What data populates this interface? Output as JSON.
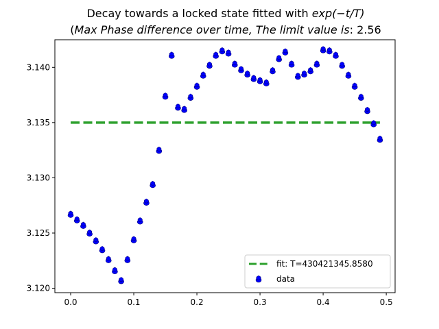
{
  "chart_data": {
    "type": "scatter",
    "title_line1_prefix": "Decay towards a locked state fitted with ",
    "title_line1_math": "exp(−t/T)",
    "title_line2_open": "(",
    "title_line2_math": "Max Phase difference over time, The limit value is",
    "title_line2_value": ": 2.56",
    "xlabel": "",
    "ylabel": "",
    "xlim": [
      -0.025,
      0.514
    ],
    "ylim": [
      3.1196,
      3.1425
    ],
    "grid": false,
    "x_ticks": [
      {
        "value": 0.0,
        "label": "0.0"
      },
      {
        "value": 0.1,
        "label": "0.1"
      },
      {
        "value": 0.2,
        "label": "0.2"
      },
      {
        "value": 0.3,
        "label": "0.3"
      },
      {
        "value": 0.4,
        "label": "0.4"
      },
      {
        "value": 0.5,
        "label": "0.5"
      }
    ],
    "y_ticks": [
      {
        "value": 3.12,
        "label": "3.120"
      },
      {
        "value": 3.125,
        "label": "3.125"
      },
      {
        "value": 3.13,
        "label": "3.130"
      },
      {
        "value": 3.135,
        "label": "3.135"
      },
      {
        "value": 3.14,
        "label": "3.140"
      }
    ],
    "legend_position": "lower-right",
    "series": [
      {
        "name": "fit: T=430421345.8580",
        "kind": "line",
        "style": "dashed",
        "color": "#2ca02c",
        "x": [
          0.0,
          0.49
        ],
        "y": [
          3.135,
          3.135
        ]
      },
      {
        "name": "data",
        "kind": "scatter",
        "color": "#0000ff",
        "x": [
          0.0,
          0.01,
          0.02,
          0.03,
          0.04,
          0.05,
          0.06,
          0.07,
          0.08,
          0.09,
          0.1,
          0.11,
          0.12,
          0.13,
          0.14,
          0.15,
          0.16,
          0.17,
          0.18,
          0.19,
          0.2,
          0.21,
          0.22,
          0.23,
          0.24,
          0.25,
          0.26,
          0.27,
          0.28,
          0.29,
          0.3,
          0.31,
          0.32,
          0.33,
          0.34,
          0.35,
          0.36,
          0.37,
          0.38,
          0.39,
          0.4,
          0.41,
          0.42,
          0.43,
          0.44,
          0.45,
          0.46,
          0.47,
          0.48,
          0.49
        ],
        "y": [
          3.1267,
          3.1262,
          3.1257,
          3.125,
          3.1243,
          3.1235,
          3.1226,
          3.1216,
          3.1207,
          3.1226,
          3.1244,
          3.1261,
          3.1278,
          3.1294,
          3.1325,
          3.1374,
          3.1411,
          3.1364,
          3.1362,
          3.1373,
          3.1383,
          3.1393,
          3.1402,
          3.1411,
          3.1415,
          3.1413,
          3.1403,
          3.1398,
          3.1394,
          3.139,
          3.1388,
          3.1386,
          3.1397,
          3.1408,
          3.1414,
          3.1403,
          3.1392,
          3.1394,
          3.1397,
          3.1403,
          3.1416,
          3.1415,
          3.1411,
          3.1402,
          3.1393,
          3.1383,
          3.1373,
          3.1361,
          3.1349,
          3.1335
        ]
      }
    ]
  }
}
